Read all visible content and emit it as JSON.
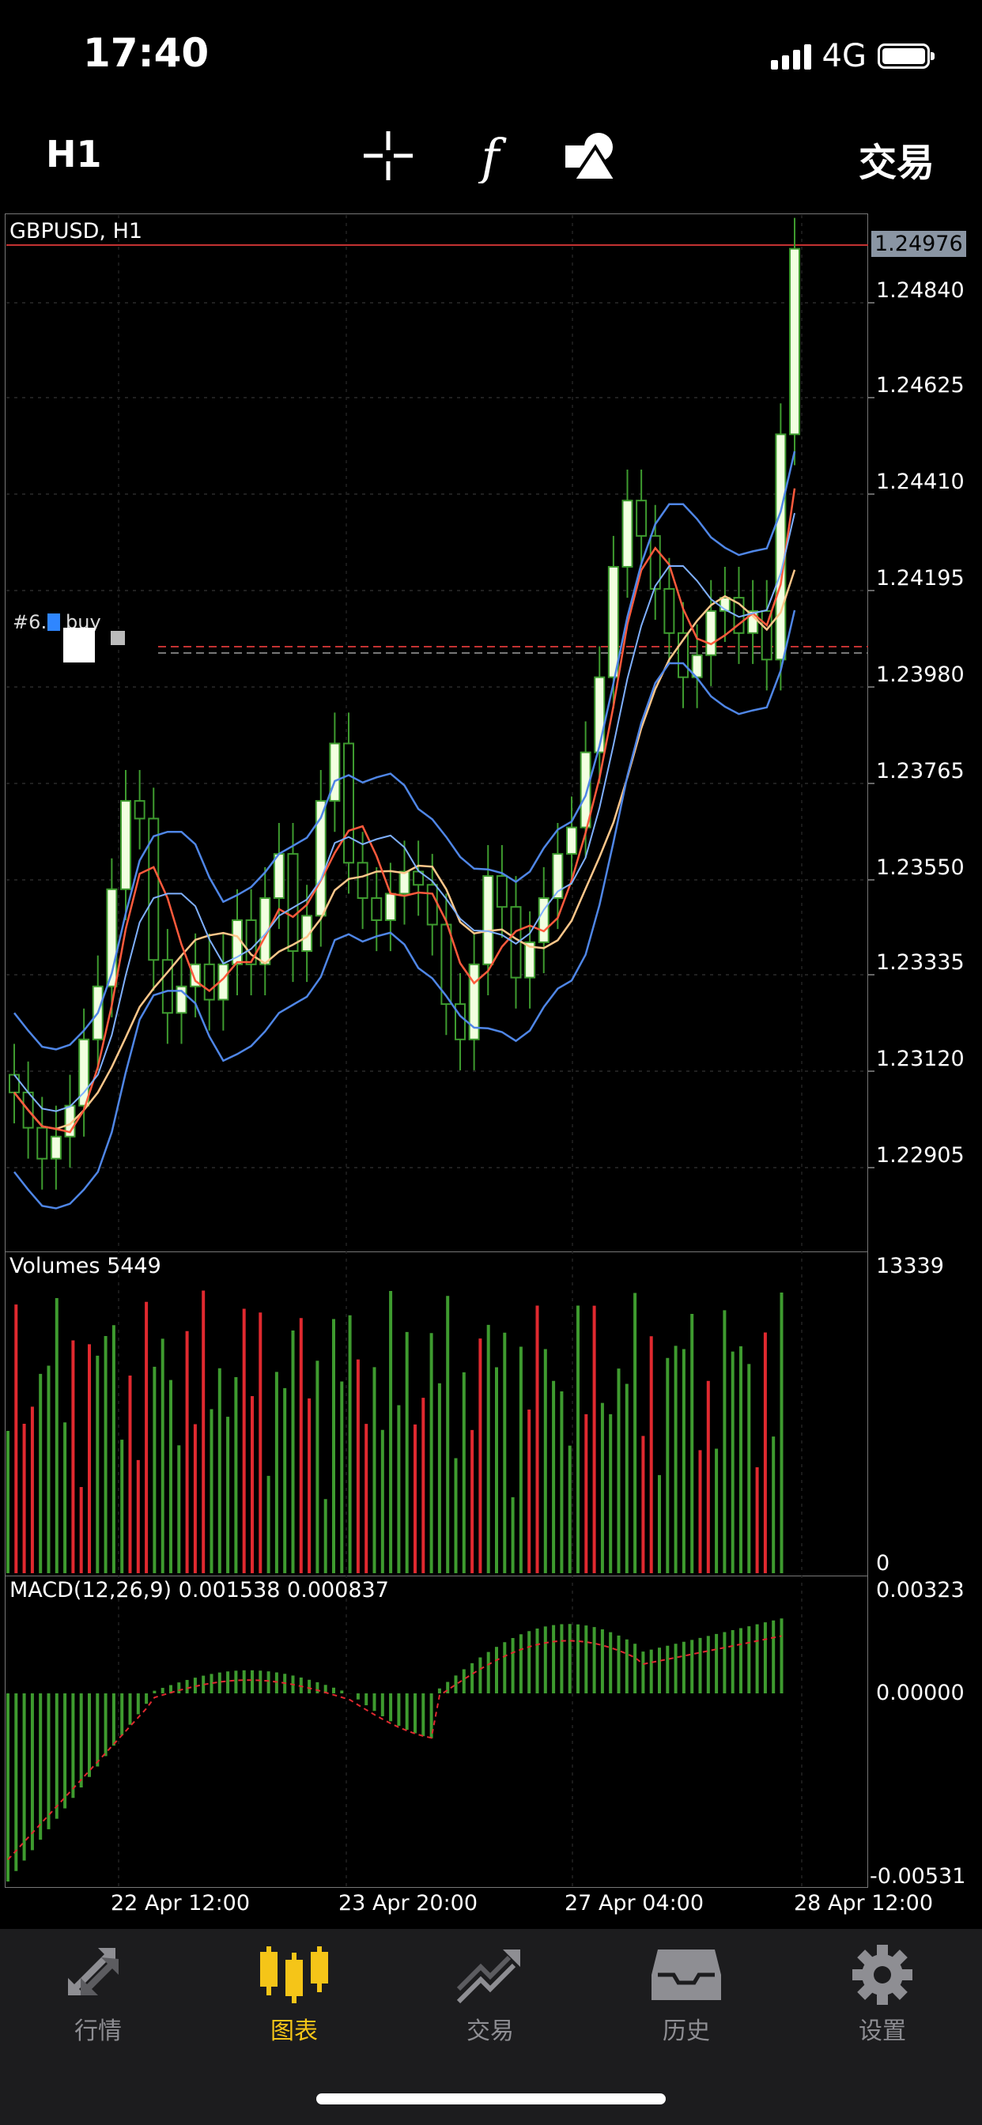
{
  "status": {
    "time": "17:40",
    "network": "4G"
  },
  "toolbar": {
    "timeframe": "H1",
    "trade": "交易",
    "icons": [
      "crosshair-icon",
      "function-icon",
      "objects-icon"
    ]
  },
  "chart": {
    "symbol_label": "GBPUSD, H1",
    "price_axis": [
      "1.24840",
      "1.24625",
      "1.24410",
      "1.24195",
      "1.23980",
      "1.23765",
      "1.23550",
      "1.23335",
      "1.23120",
      "1.22905"
    ],
    "current_price": "1.24976",
    "order_label": "#6… buy",
    "volumes": {
      "label": "Volumes 5449",
      "max": "13339",
      "min": "0"
    },
    "macd": {
      "label": "MACD(12,26,9) 0.001538 0.000837",
      "top": "0.00323",
      "zero": "0.00000",
      "bottom": "-0.00531"
    },
    "time_axis": [
      "22 Apr 12:00",
      "23 Apr 20:00",
      "27 Apr 04:00",
      "28 Apr 12:00"
    ],
    "colors": {
      "bull": "#3e9b2f",
      "bear": "#e0292f",
      "candle_up_body": "#f2ffe0",
      "band": "#4f86e6",
      "fast_ma": "#ff5a3c",
      "slow_ma": "#ffc78a",
      "price_line": "#c43232"
    }
  },
  "chart_data": {
    "type": "candlestick",
    "title": "GBPUSD, H1",
    "ylim": [
      1.227,
      1.2505
    ],
    "close_approx": [
      1.2306,
      1.2298,
      1.2291,
      1.2296,
      1.2303,
      1.2318,
      1.233,
      1.2352,
      1.2372,
      1.2368,
      1.2336,
      1.2324,
      1.233,
      1.2335,
      1.2327,
      1.2335,
      1.2345,
      1.2335,
      1.235,
      1.236,
      1.2338,
      1.2346,
      1.2372,
      1.2385,
      1.2358,
      1.235,
      1.2345,
      1.2351,
      1.2356,
      1.2353,
      1.2344,
      1.2326,
      1.2318,
      1.2335,
      1.2355,
      1.2348,
      1.2332,
      1.234,
      1.235,
      1.236,
      1.2366,
      1.2383,
      1.24,
      1.2425,
      1.244,
      1.2432,
      1.242,
      1.241,
      1.24,
      1.2405,
      1.2415,
      1.2418,
      1.241,
      1.2415,
      1.2404,
      1.2455,
      1.2497
    ],
    "volumes": {
      "max": 13339
    },
    "macd": {
      "params": [
        12,
        26,
        9
      ],
      "main": 0.001538,
      "signal": 0.000837,
      "range": [
        -0.00531,
        0.00323
      ]
    }
  },
  "nav": [
    {
      "label": "行情",
      "icon": "quotes-icon",
      "active": false
    },
    {
      "label": "图表",
      "icon": "chart-candles-icon",
      "active": true
    },
    {
      "label": "交易",
      "icon": "trade-icon",
      "active": false
    },
    {
      "label": "历史",
      "icon": "history-icon",
      "active": false
    },
    {
      "label": "设置",
      "icon": "settings-icon",
      "active": false
    }
  ]
}
